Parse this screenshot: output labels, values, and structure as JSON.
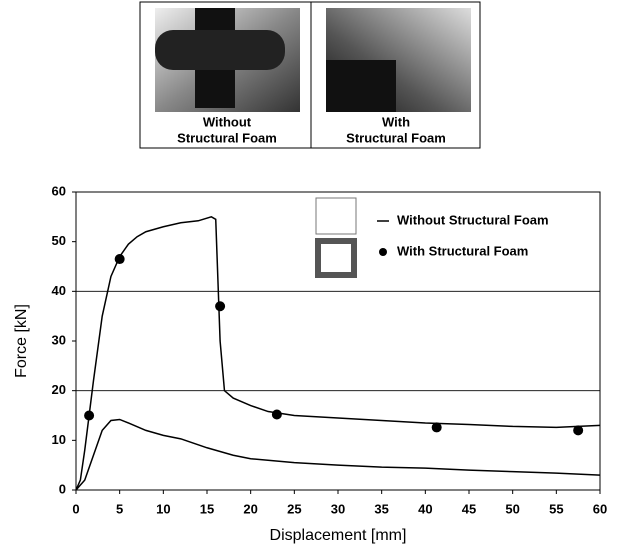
{
  "photos": {
    "left_caption": [
      "Without",
      "Structural Foam"
    ],
    "right_caption": [
      "With",
      "Structural Foam"
    ]
  },
  "chart_data": {
    "type": "line",
    "xlabel": "Displacement [mm]",
    "ylabel": "Force [kN]",
    "xlim": [
      0,
      60
    ],
    "xticks": [
      0,
      5,
      10,
      15,
      20,
      25,
      30,
      35,
      40,
      45,
      50,
      55,
      60
    ],
    "ylim": [
      0,
      60
    ],
    "yticks": [
      0,
      10,
      20,
      30,
      40,
      50,
      60
    ],
    "ygrid": [
      20,
      40
    ],
    "series": [
      {
        "name": "Without Structural Foam",
        "color": "#000000",
        "x": [
          0,
          1,
          2,
          3,
          4,
          5,
          6,
          8,
          10,
          12,
          15,
          18,
          20,
          25,
          30,
          35,
          40,
          45,
          50,
          55,
          60
        ],
        "values": [
          0,
          2,
          7,
          12,
          14,
          14.2,
          13.5,
          12,
          11,
          10.3,
          8.5,
          7,
          6.3,
          5.5,
          5,
          4.6,
          4.4,
          4,
          3.7,
          3.4,
          3
        ]
      },
      {
        "name": "With Structural Foam",
        "color": "#000000",
        "x": [
          0,
          0.5,
          1,
          1.5,
          2,
          3,
          4,
          5,
          6,
          7,
          8,
          10,
          12,
          14,
          15.5,
          16,
          16.5,
          17,
          18,
          20,
          22,
          25,
          30,
          35,
          40,
          45,
          50,
          55,
          60
        ],
        "values": [
          0,
          2,
          8,
          15,
          22,
          35,
          43,
          47,
          49.5,
          51,
          52,
          53,
          53.8,
          54.2,
          55,
          54.5,
          30,
          20,
          18.5,
          17,
          15.8,
          15,
          14.5,
          14,
          13.5,
          13.2,
          12.8,
          12.6,
          13
        ],
        "markers": {
          "x": [
            1.5,
            5,
            16.5,
            23,
            41.3,
            57.5
          ],
          "values": [
            15,
            46.5,
            37,
            15.2,
            12.6,
            12
          ]
        }
      }
    ]
  }
}
